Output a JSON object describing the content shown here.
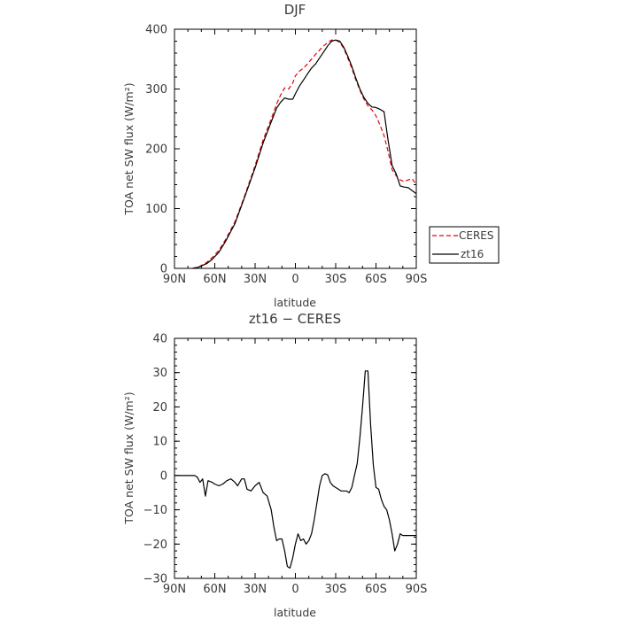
{
  "chart_data": [
    {
      "type": "line",
      "title": "DJF",
      "xlabel": "latitude",
      "ylabel": "TOA net SW flux (W/m²)",
      "xlim": [
        90,
        -90
      ],
      "ylim": [
        0,
        400
      ],
      "xticks": [
        90,
        60,
        30,
        0,
        -30,
        -60,
        -90
      ],
      "xtick_labels": [
        "90N",
        "60N",
        "30N",
        "0",
        "30S",
        "60S",
        "90S"
      ],
      "yticks": [
        0,
        100,
        200,
        300,
        400
      ],
      "ytick_labels": [
        "0",
        "100",
        "200",
        "300",
        "400"
      ],
      "legend": "right",
      "series": [
        {
          "name": "CERES",
          "color": "#e8000b",
          "dash": "dashed",
          "x": [
            77,
            72,
            70,
            66,
            62,
            57,
            52,
            45,
            38,
            30,
            24,
            18,
            14,
            11,
            8,
            5,
            2,
            0,
            -3,
            -6,
            -9,
            -12,
            -15,
            -18,
            -21,
            -24,
            -27,
            -30,
            -33,
            -36,
            -39,
            -42,
            -45,
            -48,
            -51,
            -54,
            -57,
            -60,
            -63,
            -66,
            -69,
            -72,
            -75,
            -78,
            -81,
            -84,
            -87,
            -90
          ],
          "y": [
            0,
            2,
            5,
            10,
            18,
            30,
            48,
            78,
            120,
            172,
            215,
            250,
            275,
            290,
            302,
            300,
            310,
            322,
            330,
            335,
            342,
            350,
            358,
            365,
            372,
            378,
            382,
            382,
            378,
            368,
            352,
            335,
            315,
            298,
            283,
            272,
            265,
            255,
            240,
            222,
            196,
            165,
            155,
            148,
            145,
            148,
            150,
            140
          ]
        },
        {
          "name": "zt16",
          "color": "#000000",
          "dash": "solid",
          "x": [
            76,
            72,
            70,
            66,
            62,
            57,
            52,
            45,
            38,
            30,
            24,
            18,
            14,
            11,
            8,
            5,
            2,
            0,
            -3,
            -6,
            -9,
            -12,
            -15,
            -18,
            -21,
            -24,
            -27,
            -30,
            -33,
            -36,
            -39,
            -42,
            -45,
            -48,
            -51,
            -54,
            -57,
            -60,
            -63,
            -66,
            -69,
            -72,
            -75,
            -78,
            -81,
            -84,
            -87,
            -90
          ],
          "y": [
            0,
            2,
            4,
            8,
            15,
            27,
            45,
            75,
            118,
            168,
            210,
            245,
            268,
            278,
            285,
            283,
            283,
            292,
            305,
            315,
            325,
            335,
            342,
            352,
            362,
            372,
            380,
            382,
            380,
            370,
            355,
            338,
            318,
            300,
            286,
            276,
            270,
            269,
            266,
            262,
            215,
            172,
            158,
            138,
            136,
            135,
            130,
            125
          ]
        }
      ]
    },
    {
      "type": "line",
      "title": "zt16 − CERES",
      "xlabel": "latitude",
      "ylabel": "TOA net SW flux (W/m²)",
      "xlim": [
        90,
        -90
      ],
      "ylim": [
        -30,
        40
      ],
      "xticks": [
        90,
        60,
        30,
        0,
        -30,
        -60,
        -90
      ],
      "xtick_labels": [
        "90N",
        "60N",
        "30N",
        "0",
        "30S",
        "60S",
        "90S"
      ],
      "yticks": [
        -30,
        -20,
        -10,
        0,
        10,
        20,
        30,
        40
      ],
      "ytick_labels": [
        "−30",
        "−20",
        "−10",
        "0",
        "10",
        "20",
        "30",
        "40"
      ],
      "series": [
        {
          "color": "#000000",
          "dash": "solid",
          "x": [
            90,
            84,
            78,
            75,
            73,
            71,
            69,
            67,
            65,
            62,
            60,
            57,
            54,
            51,
            48,
            45,
            43,
            40,
            38,
            36,
            33,
            30,
            27,
            24,
            21,
            18,
            16,
            14,
            12,
            10,
            8,
            6,
            4,
            2,
            0,
            -2,
            -4,
            -6,
            -8,
            -10,
            -12,
            -14,
            -16,
            -18,
            -20,
            -22,
            -24,
            -26,
            -28,
            -30,
            -32,
            -34,
            -36,
            -38,
            -40,
            -42,
            -44,
            -46,
            -48,
            -50,
            -52,
            -54,
            -56,
            -58,
            -60,
            -62,
            -64,
            -66,
            -68,
            -70,
            -72,
            -74,
            -76,
            -78,
            -80,
            -82,
            -84,
            -86,
            -88,
            -90
          ],
          "y": [
            0,
            0,
            0,
            0,
            -0.5,
            -2,
            -1,
            -6,
            -1.5,
            -2,
            -2.5,
            -3,
            -2.5,
            -1.5,
            -1,
            -2,
            -3,
            -1,
            -1,
            -4,
            -4.5,
            -3,
            -2,
            -5,
            -6,
            -10,
            -15,
            -19,
            -18.5,
            -18.5,
            -22,
            -26.5,
            -27,
            -24,
            -20,
            -17,
            -19,
            -18.5,
            -20,
            -19,
            -17,
            -13,
            -8,
            -3,
            0,
            0.5,
            0.2,
            -2,
            -3,
            -3.5,
            -4,
            -4.5,
            -4.5,
            -4.5,
            -5,
            -3.5,
            0,
            3.5,
            11,
            20,
            30.5,
            30.5,
            15,
            3,
            -3.5,
            -4,
            -7,
            -9,
            -10,
            -13,
            -17,
            -22,
            -20,
            -17,
            -17.5,
            -17.5,
            -17.5,
            -17.5,
            -17.5,
            -17.5
          ]
        }
      ]
    }
  ]
}
